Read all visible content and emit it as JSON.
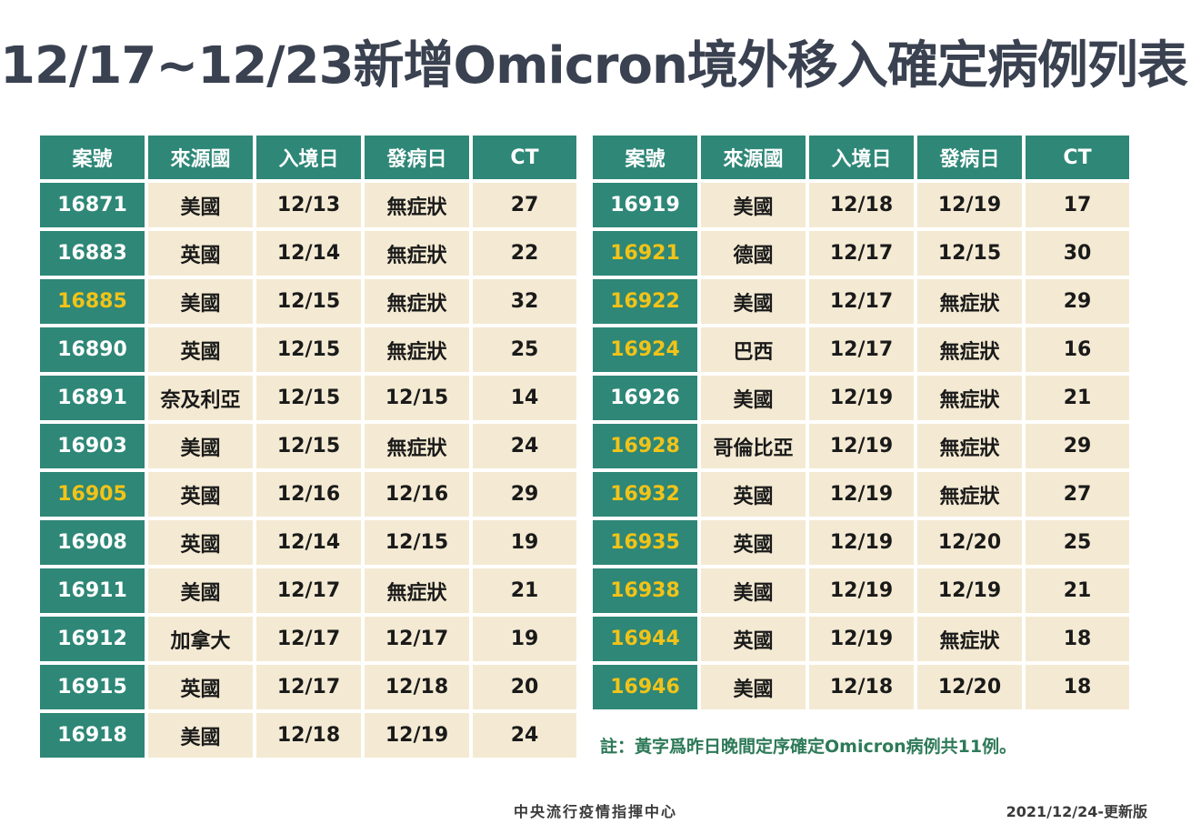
{
  "title": "12/17~12/23新增Omicron境外移入確定病例列表",
  "headers": [
    "案號",
    "來源國",
    "入境日",
    "發病日",
    "CT"
  ],
  "colors": {
    "header_bg": "#2e8777",
    "cell_bg": "#f4ead3",
    "highlight_text": "#f2c318",
    "note_text": "#2e7a58"
  },
  "left_rows": [
    {
      "id": "16871",
      "country": "美國",
      "entry": "12/13",
      "onset": "無症狀",
      "ct": "27",
      "highlight": false
    },
    {
      "id": "16883",
      "country": "英國",
      "entry": "12/14",
      "onset": "無症狀",
      "ct": "22",
      "highlight": false
    },
    {
      "id": "16885",
      "country": "美國",
      "entry": "12/15",
      "onset": "無症狀",
      "ct": "32",
      "highlight": true
    },
    {
      "id": "16890",
      "country": "英國",
      "entry": "12/15",
      "onset": "無症狀",
      "ct": "25",
      "highlight": false
    },
    {
      "id": "16891",
      "country": "奈及利亞",
      "entry": "12/15",
      "onset": "12/15",
      "ct": "14",
      "highlight": false
    },
    {
      "id": "16903",
      "country": "美國",
      "entry": "12/15",
      "onset": "無症狀",
      "ct": "24",
      "highlight": false
    },
    {
      "id": "16905",
      "country": "英國",
      "entry": "12/16",
      "onset": "12/16",
      "ct": "29",
      "highlight": true
    },
    {
      "id": "16908",
      "country": "英國",
      "entry": "12/14",
      "onset": "12/15",
      "ct": "19",
      "highlight": false
    },
    {
      "id": "16911",
      "country": "美國",
      "entry": "12/17",
      "onset": "無症狀",
      "ct": "21",
      "highlight": false
    },
    {
      "id": "16912",
      "country": "加拿大",
      "entry": "12/17",
      "onset": "12/17",
      "ct": "19",
      "highlight": false
    },
    {
      "id": "16915",
      "country": "英國",
      "entry": "12/17",
      "onset": "12/18",
      "ct": "20",
      "highlight": false
    },
    {
      "id": "16918",
      "country": "美國",
      "entry": "12/18",
      "onset": "12/19",
      "ct": "24",
      "highlight": false
    }
  ],
  "right_rows": [
    {
      "id": "16919",
      "country": "美國",
      "entry": "12/18",
      "onset": "12/19",
      "ct": "17",
      "highlight": false
    },
    {
      "id": "16921",
      "country": "德國",
      "entry": "12/17",
      "onset": "12/15",
      "ct": "30",
      "highlight": true
    },
    {
      "id": "16922",
      "country": "美國",
      "entry": "12/17",
      "onset": "無症狀",
      "ct": "29",
      "highlight": true
    },
    {
      "id": "16924",
      "country": "巴西",
      "entry": "12/17",
      "onset": "無症狀",
      "ct": "16",
      "highlight": true
    },
    {
      "id": "16926",
      "country": "美國",
      "entry": "12/19",
      "onset": "無症狀",
      "ct": "21",
      "highlight": false
    },
    {
      "id": "16928",
      "country": "哥倫比亞",
      "entry": "12/19",
      "onset": "無症狀",
      "ct": "29",
      "highlight": true
    },
    {
      "id": "16932",
      "country": "英國",
      "entry": "12/19",
      "onset": "無症狀",
      "ct": "27",
      "highlight": true
    },
    {
      "id": "16935",
      "country": "英國",
      "entry": "12/19",
      "onset": "12/20",
      "ct": "25",
      "highlight": true
    },
    {
      "id": "16938",
      "country": "美國",
      "entry": "12/19",
      "onset": "12/19",
      "ct": "21",
      "highlight": true
    },
    {
      "id": "16944",
      "country": "英國",
      "entry": "12/19",
      "onset": "無症狀",
      "ct": "18",
      "highlight": true
    },
    {
      "id": "16946",
      "country": "美國",
      "entry": "12/18",
      "onset": "12/20",
      "ct": "18",
      "highlight": true
    }
  ],
  "note": "註：黃字爲昨日晚間定序確定Omicron病例共11例。",
  "footer": {
    "org": "中央流行疫情指揮中心",
    "date": "2021/12/24-更新版"
  }
}
